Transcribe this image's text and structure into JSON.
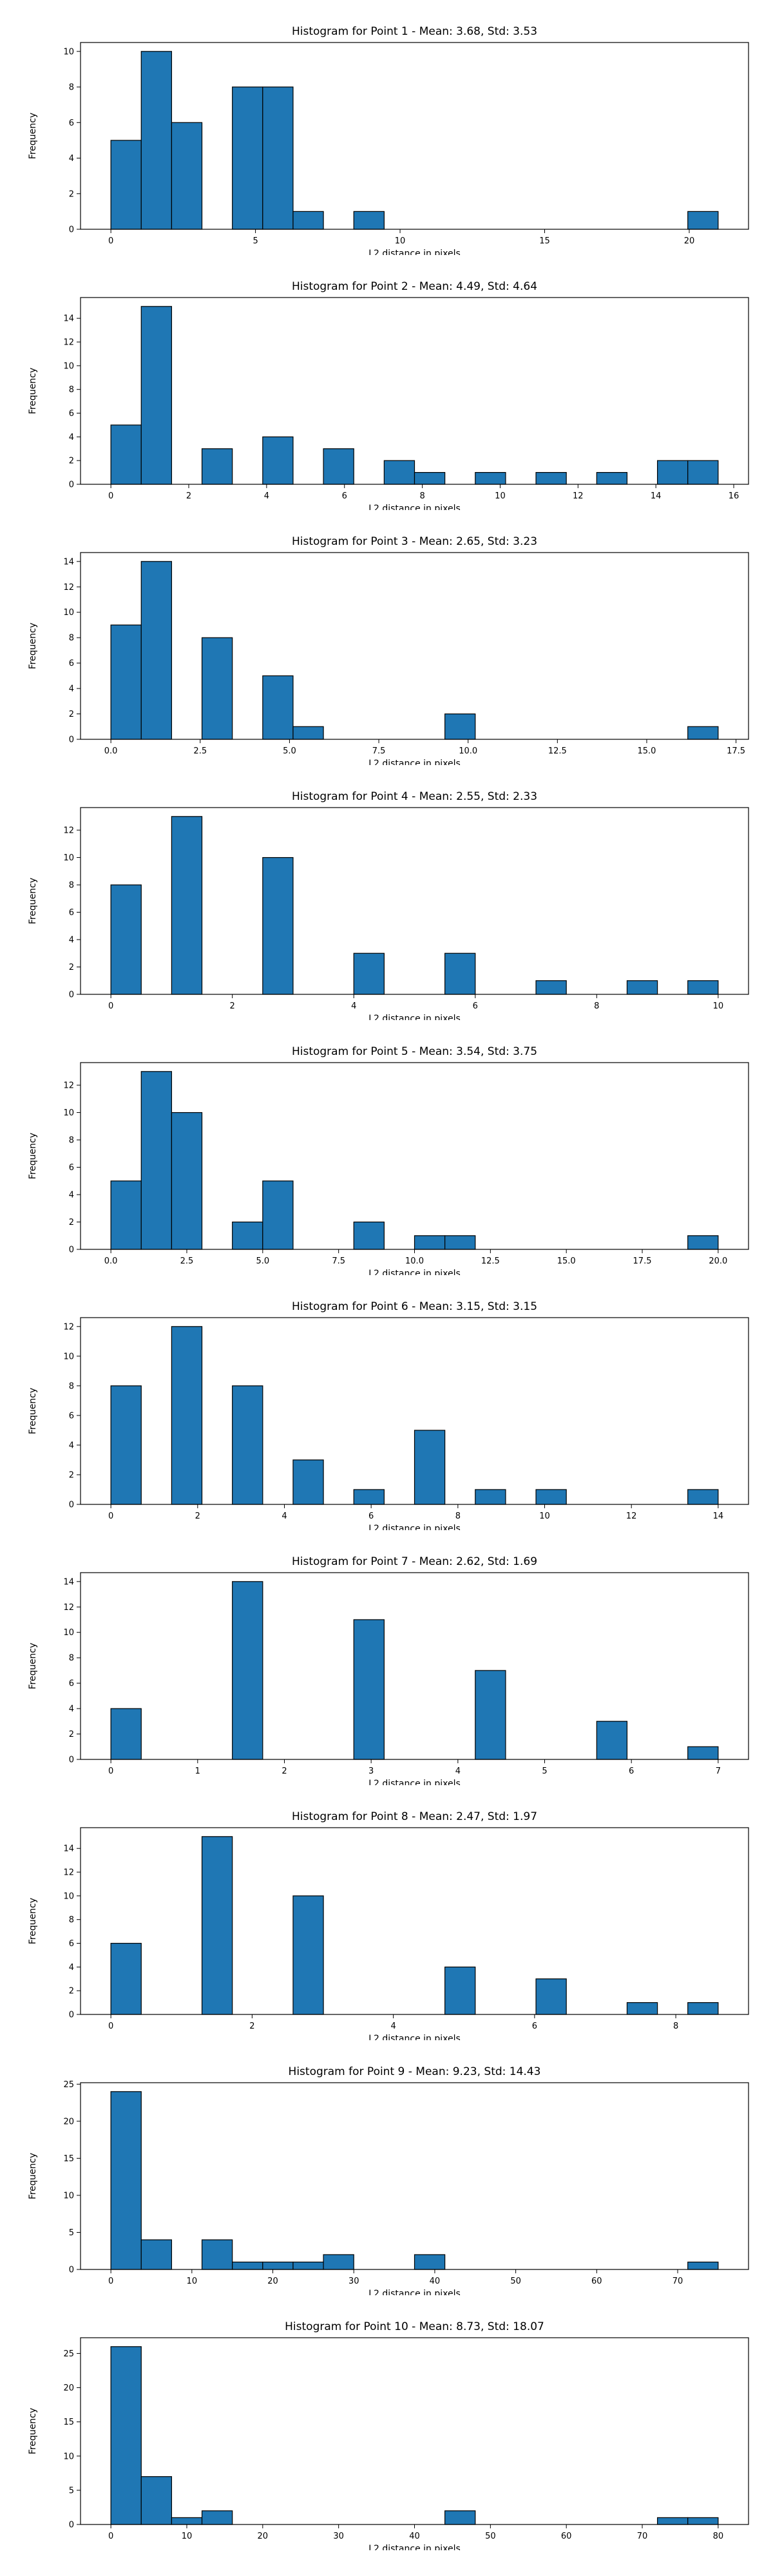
{
  "style": {
    "bar_color": "#1f77b4",
    "edge_color": "#000000",
    "grid": false,
    "legend": "none"
  },
  "chart_data": [
    {
      "type": "bar",
      "title": "Histogram for Point 1 - Mean: 3.68, Std: 3.53",
      "xlabel": "L2 distance in pixels",
      "ylabel": "Frequency",
      "xlim": [
        -1.05,
        22.05
      ],
      "ylim": [
        0,
        10.5
      ],
      "xticks": [
        "0",
        "5",
        "10",
        "15",
        "20"
      ],
      "xtick_values": [
        0,
        5,
        10,
        15,
        20
      ],
      "yticks": [
        "0",
        "2",
        "4",
        "6",
        "8",
        "10"
      ],
      "ytick_values": [
        0,
        2,
        4,
        6,
        8,
        10
      ],
      "bin_start": 0,
      "bin_width": 1.05,
      "values": [
        5,
        10,
        6,
        0,
        8,
        8,
        1,
        0,
        1,
        0,
        0,
        0,
        0,
        0,
        0,
        0,
        0,
        0,
        0,
        1
      ]
    },
    {
      "type": "bar",
      "title": "Histogram for Point 2 - Mean: 4.49, Std: 4.64",
      "xlabel": "L2 distance in pixels",
      "ylabel": "Frequency",
      "xlim": [
        -0.78,
        16.38
      ],
      "ylim": [
        0,
        15.75
      ],
      "xticks": [
        "0",
        "2",
        "4",
        "6",
        "8",
        "10",
        "12",
        "14",
        "16"
      ],
      "xtick_values": [
        0,
        2,
        4,
        6,
        8,
        10,
        12,
        14,
        16
      ],
      "yticks": [
        "0",
        "2",
        "4",
        "6",
        "8",
        "10",
        "12",
        "14"
      ],
      "ytick_values": [
        0,
        2,
        4,
        6,
        8,
        10,
        12,
        14
      ],
      "bin_start": 0,
      "bin_width": 0.78,
      "values": [
        5,
        15,
        0,
        3,
        0,
        4,
        0,
        3,
        0,
        2,
        1,
        0,
        1,
        0,
        1,
        0,
        1,
        0,
        2,
        2
      ]
    },
    {
      "type": "bar",
      "title": "Histogram for Point 3 - Mean: 2.65, Std: 3.23",
      "xlabel": "L2 distance in pixels",
      "ylabel": "Frequency",
      "xlim": [
        -0.85,
        17.85
      ],
      "ylim": [
        0,
        14.7
      ],
      "xticks": [
        "0.0",
        "2.5",
        "5.0",
        "7.5",
        "10.0",
        "12.5",
        "15.0",
        "17.5"
      ],
      "xtick_values": [
        0,
        2.5,
        5,
        7.5,
        10,
        12.5,
        15,
        17.5
      ],
      "yticks": [
        "0",
        "2",
        "4",
        "6",
        "8",
        "10",
        "12",
        "14"
      ],
      "ytick_values": [
        0,
        2,
        4,
        6,
        8,
        10,
        12,
        14
      ],
      "bin_start": 0,
      "bin_width": 0.85,
      "values": [
        9,
        14,
        0,
        8,
        0,
        5,
        1,
        0,
        0,
        0,
        0,
        2,
        0,
        0,
        0,
        0,
        0,
        0,
        0,
        1
      ]
    },
    {
      "type": "bar",
      "title": "Histogram for Point 4 - Mean: 2.55, Std: 2.33",
      "xlabel": "L2 distance in pixels",
      "ylabel": "Frequency",
      "xlim": [
        -0.5,
        10.5
      ],
      "ylim": [
        0,
        13.65
      ],
      "xticks": [
        "0",
        "2",
        "4",
        "6",
        "8",
        "10"
      ],
      "xtick_values": [
        0,
        2,
        4,
        6,
        8,
        10
      ],
      "yticks": [
        "0",
        "2",
        "4",
        "6",
        "8",
        "10",
        "12"
      ],
      "ytick_values": [
        0,
        2,
        4,
        6,
        8,
        10,
        12
      ],
      "bin_start": 0,
      "bin_width": 0.5,
      "values": [
        8,
        0,
        13,
        0,
        0,
        10,
        0,
        0,
        3,
        0,
        0,
        3,
        0,
        0,
        1,
        0,
        0,
        1,
        0,
        1
      ]
    },
    {
      "type": "bar",
      "title": "Histogram for Point 5 - Mean: 3.54, Std: 3.75",
      "xlabel": "L2 distance in pixels",
      "ylabel": "Frequency",
      "xlim": [
        -1.0,
        21.0
      ],
      "ylim": [
        0,
        13.65
      ],
      "xticks": [
        "0.0",
        "2.5",
        "5.0",
        "7.5",
        "10.0",
        "12.5",
        "15.0",
        "17.5",
        "20.0"
      ],
      "xtick_values": [
        0,
        2.5,
        5,
        7.5,
        10,
        12.5,
        15,
        17.5,
        20
      ],
      "yticks": [
        "0",
        "2",
        "4",
        "6",
        "8",
        "10",
        "12"
      ],
      "ytick_values": [
        0,
        2,
        4,
        6,
        8,
        10,
        12
      ],
      "bin_start": 0,
      "bin_width": 1.0,
      "values": [
        5,
        13,
        10,
        0,
        2,
        5,
        0,
        0,
        2,
        0,
        1,
        1,
        0,
        0,
        0,
        0,
        0,
        0,
        0,
        1
      ]
    },
    {
      "type": "bar",
      "title": "Histogram for Point 6 - Mean: 3.15, Std: 3.15",
      "xlabel": "L2 distance in pixels",
      "ylabel": "Frequency",
      "xlim": [
        -0.7,
        14.7
      ],
      "ylim": [
        0,
        12.6
      ],
      "xticks": [
        "0",
        "2",
        "4",
        "6",
        "8",
        "10",
        "12",
        "14"
      ],
      "xtick_values": [
        0,
        2,
        4,
        6,
        8,
        10,
        12,
        14
      ],
      "yticks": [
        "0",
        "2",
        "4",
        "6",
        "8",
        "10",
        "12"
      ],
      "ytick_values": [
        0,
        2,
        4,
        6,
        8,
        10,
        12
      ],
      "bin_start": 0,
      "bin_width": 0.7,
      "values": [
        8,
        0,
        12,
        0,
        8,
        0,
        3,
        0,
        1,
        0,
        5,
        0,
        1,
        0,
        1,
        0,
        0,
        0,
        0,
        1
      ]
    },
    {
      "type": "bar",
      "title": "Histogram for Point 7 - Mean: 2.62, Std: 1.69",
      "xlabel": "L2 distance in pixels",
      "ylabel": "Frequency",
      "xlim": [
        -0.35,
        7.35
      ],
      "ylim": [
        0,
        14.7
      ],
      "xticks": [
        "0",
        "1",
        "2",
        "3",
        "4",
        "5",
        "6",
        "7"
      ],
      "xtick_values": [
        0,
        1,
        2,
        3,
        4,
        5,
        6,
        7
      ],
      "yticks": [
        "0",
        "2",
        "4",
        "6",
        "8",
        "10",
        "12",
        "14"
      ],
      "ytick_values": [
        0,
        2,
        4,
        6,
        8,
        10,
        12,
        14
      ],
      "bin_start": 0,
      "bin_width": 0.35,
      "values": [
        4,
        0,
        0,
        0,
        14,
        0,
        0,
        0,
        11,
        0,
        0,
        0,
        7,
        0,
        0,
        0,
        3,
        0,
        0,
        1
      ]
    },
    {
      "type": "bar",
      "title": "Histogram for Point 8 - Mean: 2.47, Std: 1.97",
      "xlabel": "L2 distance in pixels",
      "ylabel": "Frequency",
      "xlim": [
        -0.43,
        9.03
      ],
      "ylim": [
        0,
        15.75
      ],
      "xticks": [
        "0",
        "2",
        "4",
        "6",
        "8"
      ],
      "xtick_values": [
        0,
        2,
        4,
        6,
        8
      ],
      "yticks": [
        "0",
        "2",
        "4",
        "6",
        "8",
        "10",
        "12",
        "14"
      ],
      "ytick_values": [
        0,
        2,
        4,
        6,
        8,
        10,
        12,
        14
      ],
      "bin_start": 0,
      "bin_width": 0.43,
      "values": [
        6,
        0,
        0,
        15,
        0,
        0,
        10,
        0,
        0,
        0,
        0,
        4,
        0,
        0,
        3,
        0,
        0,
        1,
        0,
        1
      ]
    },
    {
      "type": "bar",
      "title": "Histogram for Point 9 - Mean: 9.23, Std: 14.43",
      "xlabel": "L2 distance in pixels",
      "ylabel": "Frequency",
      "xlim": [
        -3.75,
        78.75
      ],
      "ylim": [
        0,
        25.2
      ],
      "xticks": [
        "0",
        "10",
        "20",
        "30",
        "40",
        "50",
        "60",
        "70"
      ],
      "xtick_values": [
        0,
        10,
        20,
        30,
        40,
        50,
        60,
        70
      ],
      "yticks": [
        "0",
        "5",
        "10",
        "15",
        "20",
        "25"
      ],
      "ytick_values": [
        0,
        5,
        10,
        15,
        20,
        25
      ],
      "bin_start": 0,
      "bin_width": 3.75,
      "values": [
        24,
        4,
        0,
        4,
        1,
        1,
        1,
        2,
        0,
        0,
        2,
        0,
        0,
        0,
        0,
        0,
        0,
        0,
        0,
        1
      ]
    },
    {
      "type": "bar",
      "title": "Histogram for Point 10 - Mean: 8.73, Std: 18.07",
      "xlabel": "L2 distance in pixels",
      "ylabel": "Frequency",
      "xlim": [
        -4.0,
        84.0
      ],
      "ylim": [
        0,
        27.3
      ],
      "xticks": [
        "0",
        "10",
        "20",
        "30",
        "40",
        "50",
        "60",
        "70",
        "80"
      ],
      "xtick_values": [
        0,
        10,
        20,
        30,
        40,
        50,
        60,
        70,
        80
      ],
      "yticks": [
        "0",
        "5",
        "10",
        "15",
        "20",
        "25"
      ],
      "ytick_values": [
        0,
        5,
        10,
        15,
        20,
        25
      ],
      "bin_start": 0,
      "bin_width": 4.0,
      "values": [
        26,
        7,
        1,
        2,
        0,
        0,
        0,
        0,
        0,
        0,
        0,
        2,
        0,
        0,
        0,
        0,
        0,
        0,
        1,
        1
      ]
    }
  ]
}
